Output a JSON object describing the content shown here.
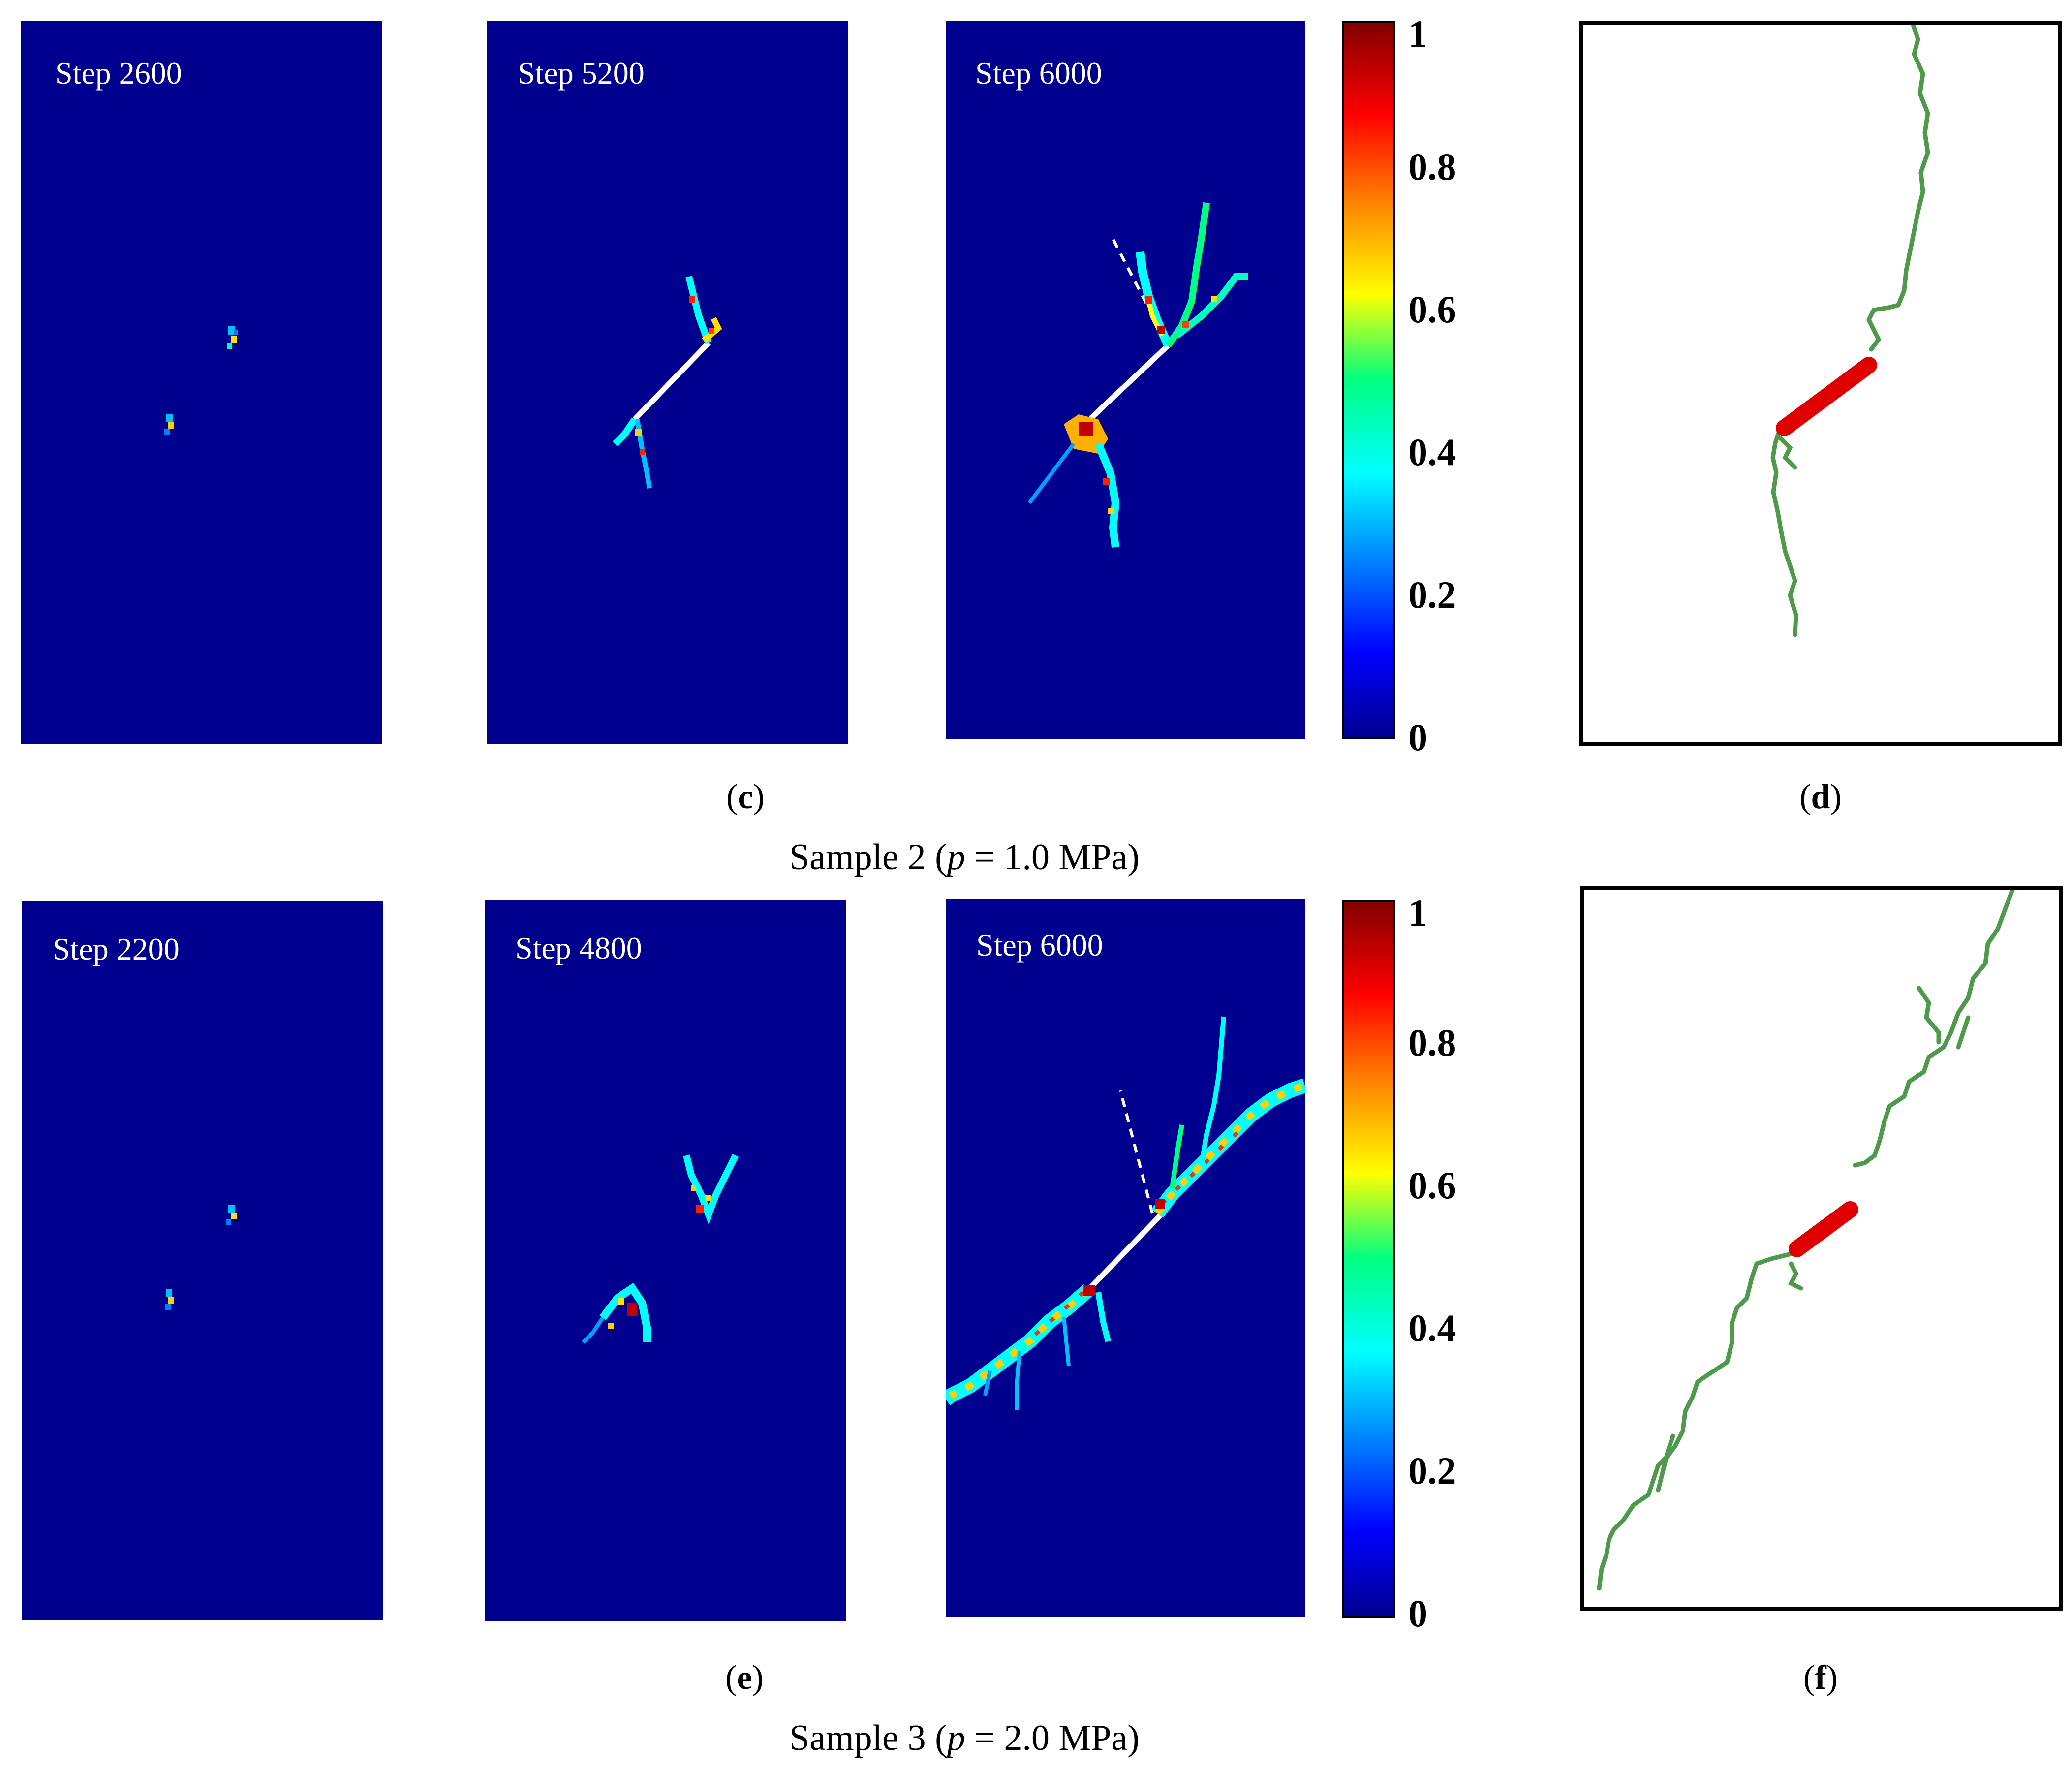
{
  "figure": {
    "row_c": {
      "panels": [
        {
          "step": "Step 2600"
        },
        {
          "step": "Step 5200"
        },
        {
          "step": "Step 6000"
        }
      ],
      "sub_label_open": "(",
      "sub_label_letter": "c",
      "sub_label_close": ")",
      "trace_sub_label_open": "(",
      "trace_sub_label_letter": "d",
      "trace_sub_label_close": ")",
      "caption_prefix": "Sample 2 (",
      "caption_var": "p",
      "caption_suffix": " = 1.0 MPa)"
    },
    "row_e": {
      "panels": [
        {
          "step": "Step 2200"
        },
        {
          "step": "Step 4800"
        },
        {
          "step": "Step 6000"
        }
      ],
      "sub_label_open": "(",
      "sub_label_letter": "e",
      "sub_label_close": ")",
      "trace_sub_label_open": "(",
      "trace_sub_label_letter": "f",
      "trace_sub_label_close": ")",
      "caption_prefix": "Sample 3 (",
      "caption_var": "p",
      "caption_suffix": " = 2.0 MPa)"
    },
    "colorbar": {
      "ticks": [
        "1",
        "0.8",
        "0.6",
        "0.4",
        "0.2",
        "0"
      ],
      "colors": {
        "low": "#00008f",
        "blue": "#0000ff",
        "cyan": "#00ffff",
        "green": "#00ff80",
        "yellow": "#ffff00",
        "orange": "#ff8000",
        "red": "#ff0000",
        "high": "#800000"
      }
    },
    "colors": {
      "background_field": "#00008f",
      "flaw_line": "#ffffff",
      "crack_trace": "#4e9a4a",
      "flaw_trace": "#e00000"
    }
  }
}
